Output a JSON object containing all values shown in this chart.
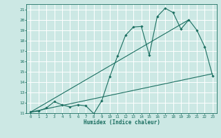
{
  "title": "",
  "xlabel": "Humidex (Indice chaleur)",
  "bg_color": "#cce8e4",
  "grid_color": "#ffffff",
  "line_color": "#1a6e60",
  "xlim": [
    -0.5,
    23.5
  ],
  "ylim": [
    11,
    21.5
  ],
  "xticks": [
    0,
    1,
    2,
    3,
    4,
    5,
    6,
    7,
    8,
    9,
    10,
    11,
    12,
    13,
    14,
    15,
    16,
    17,
    18,
    19,
    20,
    21,
    22,
    23
  ],
  "yticks": [
    11,
    12,
    13,
    14,
    15,
    16,
    17,
    18,
    19,
    20,
    21
  ],
  "line1_x": [
    0,
    1,
    2,
    3,
    4,
    5,
    6,
    7,
    8,
    9,
    10,
    11,
    12,
    13,
    14,
    15,
    16,
    17,
    18,
    19,
    20,
    21,
    22,
    23
  ],
  "line1_y": [
    11.1,
    11.2,
    11.5,
    12.1,
    11.8,
    11.6,
    11.8,
    11.7,
    10.95,
    12.2,
    14.5,
    16.5,
    18.5,
    19.3,
    19.35,
    16.6,
    20.3,
    21.1,
    20.7,
    19.1,
    20.0,
    19.0,
    17.4,
    14.6
  ],
  "line2_x": [
    0,
    23
  ],
  "line2_y": [
    11.1,
    14.8
  ],
  "line3_x": [
    0,
    20
  ],
  "line3_y": [
    11.1,
    20.0
  ]
}
